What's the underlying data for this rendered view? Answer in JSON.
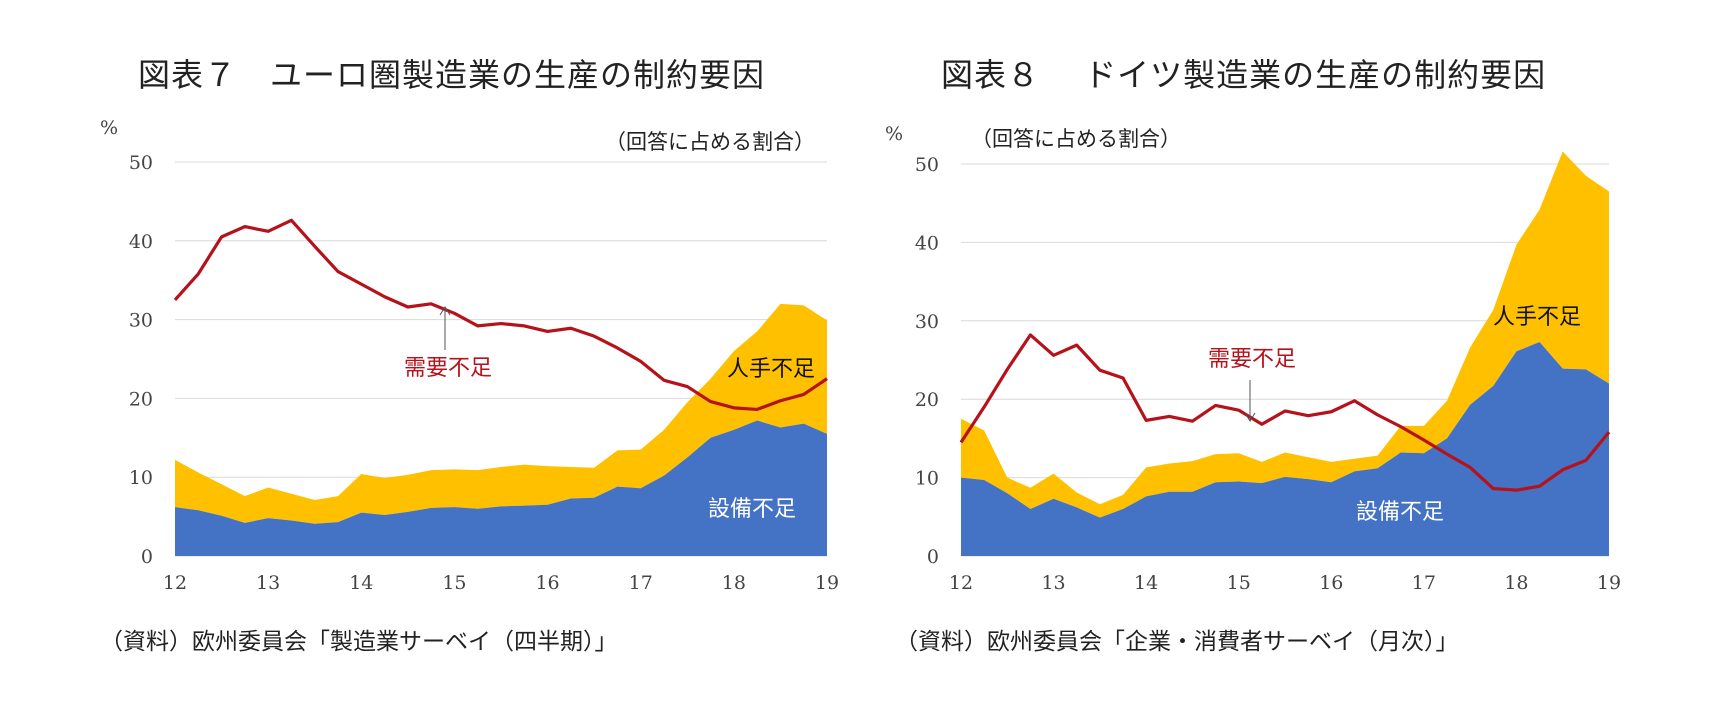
{
  "colors": {
    "demand_line": "#b5121b",
    "equipment_fill": "#4472c4",
    "labor_fill": "#ffc000",
    "grid": "#d9d9d9",
    "axis_text": "#444444",
    "demand_label": "#b5121b"
  },
  "chart_data": [
    {
      "type": "area",
      "title": "図表７　ユーロ圏製造業の生産の制約要因",
      "unit_label": "%",
      "subtitle": "（回答に占める割合）",
      "ylim": [
        0,
        50
      ],
      "yticks": [
        0,
        10,
        20,
        30,
        40,
        50
      ],
      "xlim": [
        12,
        19
      ],
      "xticks": [
        "12",
        "13",
        "14",
        "15",
        "16",
        "17",
        "18",
        "19"
      ],
      "grid": true,
      "x": [
        12.0,
        12.25,
        12.5,
        12.75,
        13.0,
        13.25,
        13.5,
        13.75,
        14.0,
        14.25,
        14.5,
        14.75,
        15.0,
        15.25,
        15.5,
        15.75,
        16.0,
        16.25,
        16.5,
        16.75,
        17.0,
        17.25,
        17.5,
        17.75,
        18.0,
        18.25,
        18.5,
        18.75,
        19.0
      ],
      "series": [
        {
          "name": "設備不足",
          "kind": "stacked-area",
          "values": [
            6.2,
            5.8,
            5.1,
            4.2,
            4.8,
            4.5,
            4.1,
            4.3,
            5.5,
            5.2,
            5.6,
            6.1,
            6.2,
            6.0,
            6.3,
            6.4,
            6.5,
            7.3,
            7.4,
            8.8,
            8.6,
            10.2,
            12.5,
            15.0,
            16.0,
            17.2,
            16.3,
            16.8,
            15.5
          ]
        },
        {
          "name": "人手不足",
          "kind": "stacked-area",
          "values": [
            12.2,
            10.6,
            9.1,
            7.6,
            8.7,
            7.9,
            7.1,
            7.6,
            10.4,
            9.9,
            10.3,
            10.9,
            11.0,
            10.9,
            11.3,
            11.6,
            11.4,
            11.3,
            11.2,
            13.4,
            13.5,
            16.0,
            19.5,
            22.5,
            26.0,
            28.5,
            32.0,
            31.8,
            29.9
          ],
          "note": "values are cumulative top of stack"
        },
        {
          "name": "需要不足",
          "kind": "line",
          "values": [
            32.5,
            35.8,
            40.5,
            41.8,
            41.2,
            42.6,
            39.3,
            36.1,
            34.5,
            32.9,
            31.6,
            32.0,
            30.8,
            29.2,
            29.5,
            29.2,
            28.5,
            28.9,
            27.9,
            26.4,
            24.7,
            22.3,
            21.5,
            19.6,
            18.8,
            18.6,
            19.7,
            20.5,
            22.5
          ]
        }
      ],
      "labels": {
        "demand": "需要不足",
        "labor": "人手不足",
        "equipment": "設備不足"
      },
      "source": "（資料）欧州委員会「製造業サーベイ（四半期）」"
    },
    {
      "type": "area",
      "title": "図表８　 ドイツ製造業の生産の制約要因",
      "unit_label": "%",
      "subtitle": "（回答に占める割合）",
      "ylim": [
        0,
        50
      ],
      "yticks": [
        0,
        10,
        20,
        30,
        40,
        50
      ],
      "xlim": [
        12,
        19
      ],
      "xticks": [
        "12",
        "13",
        "14",
        "15",
        "16",
        "17",
        "18",
        "19"
      ],
      "grid": true,
      "x": [
        12.0,
        12.25,
        12.5,
        12.75,
        13.0,
        13.25,
        13.5,
        13.75,
        14.0,
        14.25,
        14.5,
        14.75,
        15.0,
        15.25,
        15.5,
        15.75,
        16.0,
        16.25,
        16.5,
        16.75,
        17.0,
        17.25,
        17.5,
        17.75,
        18.0,
        18.25,
        18.5,
        18.75,
        19.0
      ],
      "series": [
        {
          "name": "設備不足",
          "kind": "stacked-area",
          "values": [
            10.0,
            9.7,
            8.0,
            6.0,
            7.3,
            6.2,
            4.9,
            6.0,
            7.6,
            8.2,
            8.2,
            9.4,
            9.5,
            9.3,
            10.1,
            9.8,
            9.4,
            10.8,
            11.2,
            13.2,
            13.1,
            15.0,
            19.3,
            21.7,
            26.1,
            27.3,
            23.9,
            23.8,
            22.0
          ]
        },
        {
          "name": "人手不足",
          "kind": "stacked-area",
          "values": [
            17.5,
            16.0,
            10.0,
            8.7,
            10.5,
            8.1,
            6.6,
            7.8,
            11.3,
            11.8,
            12.1,
            13.0,
            13.1,
            12.0,
            13.2,
            12.6,
            12.0,
            12.4,
            12.8,
            16.6,
            16.6,
            19.8,
            26.6,
            31.4,
            39.7,
            44.2,
            51.6,
            48.5,
            46.5
          ],
          "note": "values are cumulative top of stack"
        },
        {
          "name": "需要不足",
          "kind": "line",
          "values": [
            14.5,
            19.0,
            23.8,
            28.2,
            25.6,
            26.9,
            23.7,
            22.7,
            17.3,
            17.8,
            17.2,
            19.2,
            18.6,
            16.8,
            18.5,
            17.9,
            18.4,
            19.8,
            18.0,
            16.5,
            14.8,
            13.0,
            11.3,
            8.6,
            8.4,
            8.9,
            11.0,
            12.2,
            15.8
          ]
        }
      ],
      "labels": {
        "demand": "需要不足",
        "labor": "人手不足",
        "equipment": "設備不足"
      },
      "source": "（資料）欧州委員会「企業・消費者サーベイ（月次）」"
    }
  ]
}
